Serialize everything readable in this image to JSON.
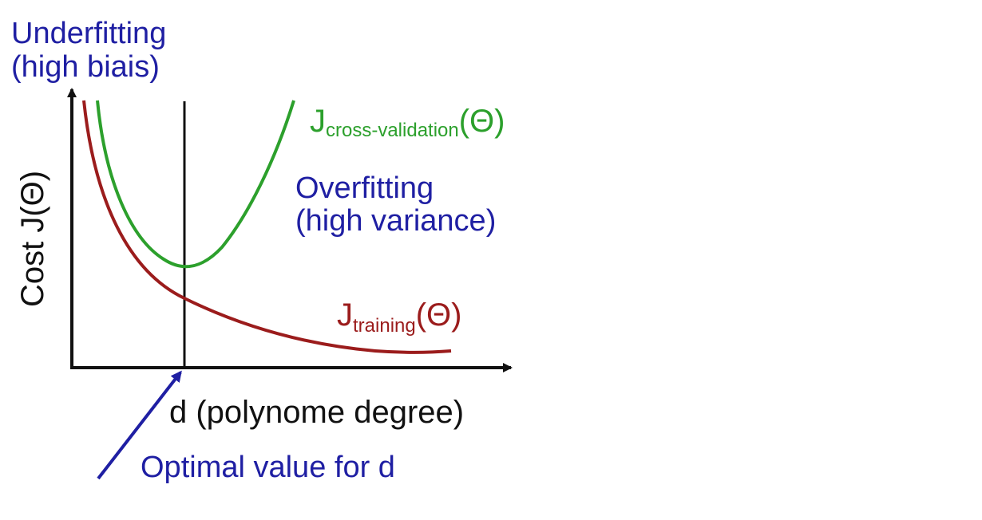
{
  "labels": {
    "underfitting_line1": "Underfitting",
    "underfitting_line2": "(high biais)",
    "overfitting_line1": "Overfitting",
    "overfitting_line2": "(high variance)",
    "y_axis": "Cost J(Θ)",
    "x_axis": "d (polynome degree)",
    "optimal": "Optimal value for d",
    "jcv_main": "J",
    "jcv_sub": "cross-validation",
    "jcv_arg": "(Θ)",
    "jtrain_main": "J",
    "jtrain_sub": "training",
    "jtrain_arg": "(Θ)"
  },
  "colors": {
    "annotation": "#1f1fa3",
    "cross_validation": "#2ca02c",
    "training": "#9b1c1c",
    "axes": "#111111"
  }
}
